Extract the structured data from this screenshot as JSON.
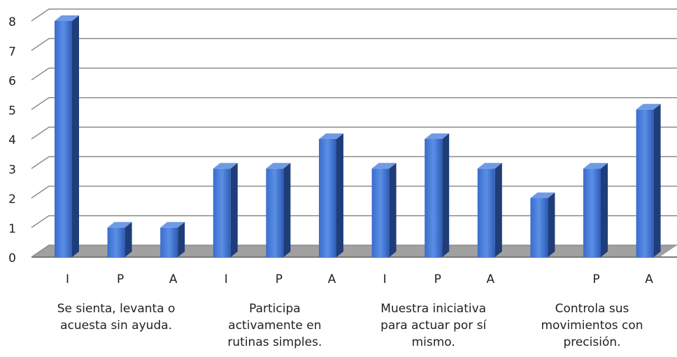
{
  "chart_data": {
    "type": "bar3d",
    "categories": [
      "I",
      "P",
      "A",
      "I",
      "P",
      "A",
      "I",
      "P",
      "A",
      null,
      "P",
      "A"
    ],
    "values": [
      8,
      1,
      1,
      3,
      3,
      4,
      3,
      4,
      3,
      2,
      3,
      5
    ],
    "groups": [
      "Se sienta, levanta o acuesta sin ayuda.",
      "Participa activamente en rutinas simples.",
      "Muestra iniciativa para actuar por sí mismo.",
      "Controla sus movimientos con precisión."
    ],
    "color": "#4472c4",
    "ylim": [
      0,
      8
    ],
    "yticks": [
      0,
      1,
      2,
      3,
      4,
      5,
      6,
      7,
      8
    ],
    "grid": true
  }
}
